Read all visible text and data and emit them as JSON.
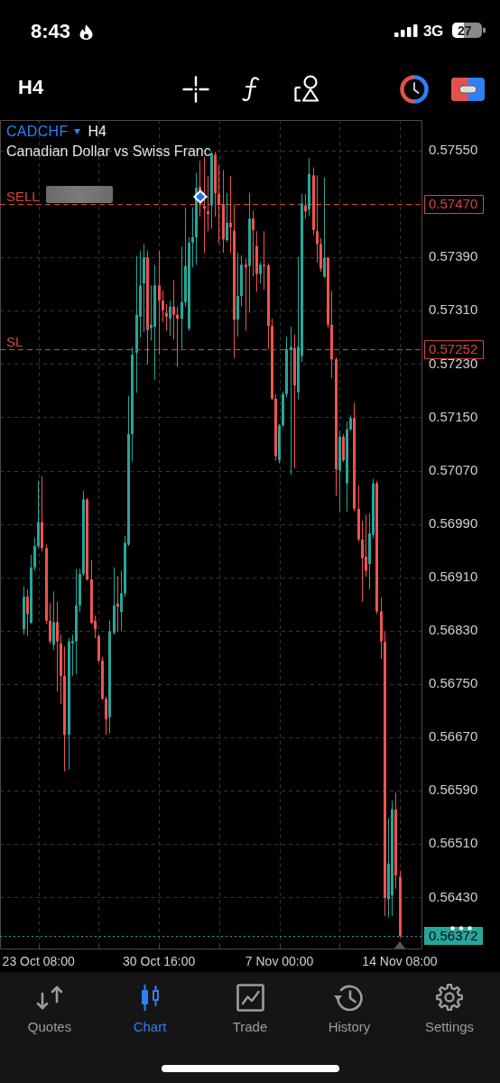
{
  "chart_data": {
    "type": "candlestick",
    "title": "CADCHF",
    "subtitle": "Canadian Dollar vs Swiss Franc",
    "categories": [
      null,
      null,
      null,
      null,
      "23 Oct 08:00",
      null,
      null,
      null,
      null,
      null,
      null,
      null,
      null,
      null,
      null,
      null,
      null,
      null,
      null,
      null,
      null,
      null,
      null,
      null,
      null,
      null,
      null,
      null,
      null,
      null,
      null,
      null,
      null,
      null,
      null,
      null,
      "30 Oct 16:00",
      null,
      null,
      null,
      null,
      null,
      null,
      null,
      null,
      null,
      null,
      null,
      null,
      null,
      null,
      null,
      null,
      null,
      null,
      null,
      null,
      null,
      null,
      null,
      null,
      null,
      null,
      null,
      null,
      null,
      null,
      null,
      "7 Nov 00:00",
      null,
      null,
      null,
      null,
      null,
      null,
      null,
      null,
      null,
      null,
      null,
      null,
      null,
      null,
      null,
      null,
      null,
      null,
      null,
      null,
      null,
      null,
      null,
      null,
      null,
      null,
      null,
      null,
      null,
      null,
      null,
      "14 Nov 08:00"
    ],
    "ohlc": [
      [
        0.56832,
        0.56897,
        0.56824,
        0.56881
      ],
      [
        0.56881,
        0.56892,
        0.56822,
        0.56855
      ],
      [
        0.56842,
        0.56944,
        0.5684,
        0.56925
      ],
      [
        0.56925,
        0.5697,
        0.5692,
        0.56957
      ],
      [
        0.56957,
        0.57055,
        0.56954,
        0.56993
      ],
      [
        0.56993,
        0.57062,
        0.56949,
        0.56954
      ],
      [
        0.56954,
        0.56959,
        0.5684,
        0.56845
      ],
      [
        0.56845,
        0.56871,
        0.5681,
        0.56814
      ],
      [
        0.56809,
        0.56889,
        0.56801,
        0.56843
      ],
      [
        0.56843,
        0.56873,
        0.56739,
        0.56814
      ],
      [
        0.56811,
        0.56824,
        0.5672,
        0.56762
      ],
      [
        0.56762,
        0.56806,
        0.56619,
        0.56674
      ],
      [
        0.56674,
        0.56819,
        0.56622,
        0.56814
      ],
      [
        0.56811,
        0.56824,
        0.56762,
        0.56815
      ],
      [
        0.56814,
        0.56923,
        0.56765,
        0.56868
      ],
      [
        0.56868,
        0.56923,
        0.56858,
        0.56915
      ],
      [
        0.56915,
        0.5704,
        0.56912,
        0.57027
      ],
      [
        0.57027,
        0.57029,
        0.56905,
        0.56907
      ],
      [
        0.56907,
        0.56936,
        0.5684,
        0.56842
      ],
      [
        0.56845,
        0.56853,
        0.56819,
        0.56832
      ],
      [
        0.56822,
        0.56824,
        0.56783,
        0.56785
      ],
      [
        0.56785,
        0.56791,
        0.56726,
        0.56728
      ],
      [
        0.56728,
        0.56731,
        0.56674,
        0.56697
      ],
      [
        0.567,
        0.56845,
        0.56676,
        0.56829
      ],
      [
        0.56827,
        0.56925,
        0.56824,
        0.56868
      ],
      [
        0.56871,
        0.56912,
        0.56829,
        0.56866
      ],
      [
        0.56858,
        0.5692,
        0.56829,
        0.56886
      ],
      [
        0.56886,
        0.56972,
        0.56881,
        0.56962
      ],
      [
        0.56959,
        0.57182,
        0.56957,
        0.57125
      ],
      [
        0.57125,
        0.57255,
        0.57084,
        0.57244
      ],
      [
        0.57247,
        0.57392,
        0.57187,
        0.57304
      ],
      [
        0.57301,
        0.574,
        0.5727,
        0.57348
      ],
      [
        0.57351,
        0.5741,
        0.57278,
        0.5739
      ],
      [
        0.5739,
        0.574,
        0.57229,
        0.57281
      ],
      [
        0.57284,
        0.57348,
        0.57265,
        0.57289
      ],
      [
        0.57286,
        0.57379,
        0.57206,
        0.57348
      ],
      [
        0.57348,
        0.574,
        0.57244,
        0.57325
      ],
      [
        0.57325,
        0.5734,
        0.57293,
        0.57311
      ],
      [
        0.57307,
        0.5732,
        0.5728,
        0.57301
      ],
      [
        0.57298,
        0.57325,
        0.57272,
        0.57316
      ],
      [
        0.57316,
        0.57356,
        0.57267,
        0.57304
      ],
      [
        0.57304,
        0.57316,
        0.57226,
        0.57298
      ],
      [
        0.57298,
        0.57406,
        0.57253,
        0.57323
      ],
      [
        0.57323,
        0.57465,
        0.57316,
        0.57377
      ],
      [
        0.57283,
        0.5742,
        0.5728,
        0.57412
      ],
      [
        0.57412,
        0.57465,
        0.57375,
        0.5742
      ],
      [
        0.5742,
        0.57517,
        0.57379,
        0.57494
      ],
      [
        0.57496,
        0.57535,
        0.57451,
        0.5749
      ],
      [
        0.57467,
        0.57541,
        0.57397,
        0.57463
      ],
      [
        0.57459,
        0.57512,
        0.57429,
        0.57455
      ],
      [
        0.57468,
        0.57548,
        0.57433,
        0.57546
      ],
      [
        0.57544,
        0.57548,
        0.57451,
        0.57486
      ],
      [
        0.57485,
        0.57528,
        0.57411,
        0.5747
      ],
      [
        0.5747,
        0.57521,
        0.57397,
        0.57417
      ],
      [
        0.57416,
        0.57487,
        0.57413,
        0.57442
      ],
      [
        0.57442,
        0.57512,
        0.57397,
        0.57435
      ],
      [
        0.5743,
        0.57469,
        0.57239,
        0.57296
      ],
      [
        0.57297,
        0.57397,
        0.57271,
        0.57332
      ],
      [
        0.57332,
        0.57393,
        0.57316,
        0.57379
      ],
      [
        0.57379,
        0.57388,
        0.5728,
        0.57375
      ],
      [
        0.57377,
        0.57487,
        0.57307,
        0.57448
      ],
      [
        0.57448,
        0.5746,
        0.57361,
        0.57431
      ],
      [
        0.57407,
        0.57429,
        0.57338,
        0.57365
      ],
      [
        0.57365,
        0.57383,
        0.57351,
        0.57379
      ],
      [
        0.57379,
        0.57429,
        0.57342,
        0.57377
      ],
      [
        0.57378,
        0.57381,
        0.57253,
        0.57287
      ],
      [
        0.57287,
        0.57298,
        0.57176,
        0.57178
      ],
      [
        0.57178,
        0.57185,
        0.57085,
        0.57092
      ],
      [
        0.57086,
        0.5714,
        0.57081,
        0.57138
      ],
      [
        0.57138,
        0.57189,
        0.57135,
        0.57185
      ],
      [
        0.57185,
        0.57271,
        0.5718,
        0.57252
      ],
      [
        0.57252,
        0.57286,
        0.57064,
        0.57256
      ],
      [
        0.57254,
        0.57275,
        0.57074,
        0.57198
      ],
      [
        0.57188,
        0.57391,
        0.57177,
        0.57256
      ],
      [
        0.57242,
        0.57485,
        0.57233,
        0.57471
      ],
      [
        0.57468,
        0.57485,
        0.57448,
        0.57459
      ],
      [
        0.57462,
        0.57539,
        0.57452,
        0.57515
      ],
      [
        0.57513,
        0.57525,
        0.57424,
        0.57431
      ],
      [
        0.57429,
        0.57513,
        0.57382,
        0.5741
      ],
      [
        0.5741,
        0.57419,
        0.57368,
        0.57373
      ],
      [
        0.57361,
        0.5751,
        0.57359,
        0.57389
      ],
      [
        0.57389,
        0.57391,
        0.57284,
        0.57289
      ],
      [
        0.57289,
        0.5734,
        0.57209,
        0.57237
      ],
      [
        0.57237,
        0.5724,
        0.57032,
        0.57072
      ],
      [
        0.5707,
        0.5713,
        0.57009,
        0.57121
      ],
      [
        0.57121,
        0.57125,
        0.57083,
        0.57086
      ],
      [
        0.57051,
        0.57144,
        0.57009,
        0.57132
      ],
      [
        0.57132,
        0.57153,
        0.5713,
        0.57149
      ],
      [
        0.57149,
        0.57172,
        0.57009,
        0.57013
      ],
      [
        0.57013,
        0.57048,
        0.56964,
        0.56967
      ],
      [
        0.56967,
        0.56995,
        0.56873,
        0.56939
      ],
      [
        0.56941,
        0.57004,
        0.56911,
        0.5692
      ],
      [
        0.5693,
        0.57006,
        0.56892,
        0.56976
      ],
      [
        0.56974,
        0.57058,
        0.56969,
        0.57051
      ],
      [
        0.57051,
        0.57055,
        0.56855,
        0.56859
      ],
      [
        0.56859,
        0.5688,
        0.56788,
        0.56814
      ],
      [
        0.56813,
        0.56828,
        0.56402,
        0.56429
      ],
      [
        0.56427,
        0.56549,
        0.564,
        0.56481
      ],
      [
        0.56433,
        0.56575,
        0.56402,
        0.56562
      ],
      [
        0.56562,
        0.56587,
        0.56443,
        0.56463
      ],
      [
        0.56461,
        0.5647,
        0.5637,
        0.56372
      ]
    ],
    "colors": [
      "#26a69a",
      "#ef5350",
      "#26a69a",
      "#26a69a",
      "#26a69a",
      "#ef5350",
      "#ef5350",
      "#ef5350",
      "#26a69a",
      "#ef5350",
      "#ef5350",
      "#ef5350",
      "#26a69a",
      "#26a69a",
      "#26a69a",
      "#26a69a",
      "#26a69a",
      "#ef5350",
      "#ef5350",
      "#ef5350",
      "#ef5350",
      "#ef5350",
      "#ef5350",
      "#26a69a",
      "#26a69a",
      "#ef5350",
      "#26a69a",
      "#26a69a",
      "#26a69a",
      "#26a69a",
      "#26a69a",
      "#26a69a",
      "#26a69a",
      "#ef5350",
      "#26a69a",
      "#26a69a",
      "#ef5350",
      "#ef5350",
      "#ef5350",
      "#26a69a",
      "#ef5350",
      "#ef5350",
      "#26a69a",
      "#26a69a",
      "#26a69a",
      "#26a69a",
      "#26a69a",
      "#ef5350",
      "#ef5350",
      "#ef5350",
      "#26a69a",
      "#ef5350",
      "#ef5350",
      "#ef5350",
      "#26a69a",
      "#ef5350",
      "#ef5350",
      "#26a69a",
      "#26a69a",
      "#ef5350",
      "#26a69a",
      "#ef5350",
      "#ef5350",
      "#26a69a",
      "#ef5350",
      "#ef5350",
      "#ef5350",
      "#ef5350",
      "#26a69a",
      "#26a69a",
      "#26a69a",
      "#26a69a",
      "#ef5350",
      "#26a69a",
      "#26a69a",
      "#ef5350",
      "#26a69a",
      "#ef5350",
      "#ef5350",
      "#ef5350",
      "#26a69a",
      "#ef5350",
      "#ef5350",
      "#ef5350",
      "#26a69a",
      "#ef5350",
      "#26a69a",
      "#26a69a",
      "#ef5350",
      "#ef5350",
      "#ef5350",
      "#ef5350",
      "#26a69a",
      "#26a69a",
      "#ef5350",
      "#ef5350",
      "#ef5350",
      "#26a69a",
      "#26a69a",
      "#ef5350",
      "#ef5350"
    ],
    "ylim": [
      0.56352,
      0.57596
    ],
    "yticks": [
      {
        "value": 0.5643,
        "label": "0.56430"
      },
      {
        "value": 0.5651,
        "label": "0.56510"
      },
      {
        "value": 0.5659,
        "label": "0.56590"
      },
      {
        "value": 0.5667,
        "label": "0.56670"
      },
      {
        "value": 0.5675,
        "label": "0.56750"
      },
      {
        "value": 0.5683,
        "label": "0.56830"
      },
      {
        "value": 0.5691,
        "label": "0.56910"
      },
      {
        "value": 0.5699,
        "label": "0.56990"
      },
      {
        "value": 0.5707,
        "label": "0.57070"
      },
      {
        "value": 0.5715,
        "label": "0.57150"
      },
      {
        "value": 0.5723,
        "label": "0.57230"
      },
      {
        "value": 0.5731,
        "label": "0.57310"
      },
      {
        "value": 0.5739,
        "label": "0.57390"
      },
      {
        "value": 0.5755,
        "label": "0.57550"
      }
    ],
    "grid": true,
    "ref_lines": [
      {
        "axis": "y",
        "value": 0.5747,
        "label": "SELL",
        "color": "#d4463e",
        "line_style": "dashed"
      },
      {
        "axis": "y",
        "value": 0.57252,
        "label": "SL",
        "color": "#d4463e",
        "line_style": "dashed"
      },
      {
        "axis": "y",
        "value": 0.56372,
        "color": "#26a69a",
        "line_style": "dotted"
      }
    ],
    "annotations": [
      "H4",
      "8:43",
      "3G",
      "27",
      "H4",
      "Quotes",
      "Chart",
      "Trade",
      "History",
      "Settings",
      "0.57470",
      "0.57252",
      "0.56372"
    ]
  }
}
